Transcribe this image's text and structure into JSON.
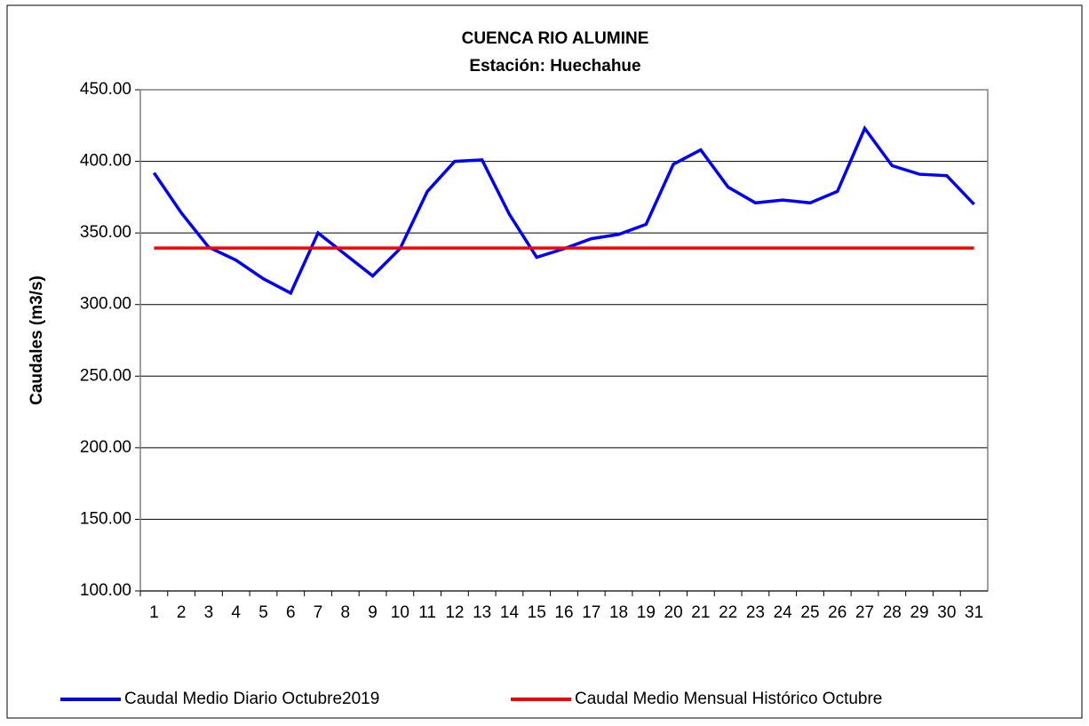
{
  "chart_data": {
    "type": "line",
    "title": "CUENCA RIO ALUMINE",
    "subtitle": "Estación: Huechahue",
    "y_label": "Caudales (m3/s)",
    "categories": [
      "1",
      "2",
      "3",
      "4",
      "5",
      "6",
      "7",
      "8",
      "9",
      "10",
      "11",
      "12",
      "13",
      "14",
      "15",
      "16",
      "17",
      "18",
      "19",
      "20",
      "21",
      "22",
      "23",
      "24",
      "25",
      "26",
      "27",
      "28",
      "29",
      "30",
      "31"
    ],
    "series": [
      {
        "name": "Caudal Medio Diario Octubre2019",
        "color": "#0000ff",
        "values": [
          392,
          364,
          340,
          331,
          318,
          308,
          350,
          335,
          320,
          339,
          379,
          400,
          401,
          363,
          333,
          339,
          346,
          349,
          356,
          398,
          408,
          382,
          371,
          373,
          371,
          379,
          423,
          397,
          391,
          390,
          370
        ]
      },
      {
        "name": "Caudal Medio Mensual Histórico Octubre",
        "color": "#ff0000",
        "values": [
          339.5,
          339.5,
          339.5,
          339.5,
          339.5,
          339.5,
          339.5,
          339.5,
          339.5,
          339.5,
          339.5,
          339.5,
          339.5,
          339.5,
          339.5,
          339.5,
          339.5,
          339.5,
          339.5,
          339.5,
          339.5,
          339.5,
          339.5,
          339.5,
          339.5,
          339.5,
          339.5,
          339.5,
          339.5,
          339.5,
          339.5
        ]
      }
    ],
    "ylim": [
      100,
      450
    ],
    "yticks": [
      {
        "value": 100,
        "label": "100.00"
      },
      {
        "value": 150,
        "label": "150.00"
      },
      {
        "value": 200,
        "label": "200.00"
      },
      {
        "value": 250,
        "label": "250.00"
      },
      {
        "value": 300,
        "label": "300.00"
      },
      {
        "value": 350,
        "label": "350.00"
      },
      {
        "value": 400,
        "label": "400.00"
      },
      {
        "value": 450,
        "label": "450.00"
      }
    ],
    "grid": true,
    "legend": "bottom"
  }
}
